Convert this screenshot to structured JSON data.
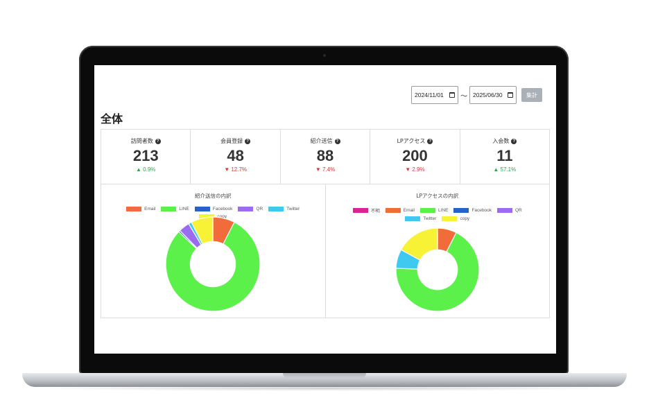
{
  "filters": {
    "start_date": "2024/11/01",
    "end_date": "2025/06/30",
    "separator": "〜",
    "aggregate_button": "集計"
  },
  "page_title": "全体",
  "stats": [
    {
      "label": "訪問者数",
      "value": "213",
      "change": "▲ 0.9%",
      "direction": "up"
    },
    {
      "label": "会員登録",
      "value": "48",
      "change": "▼ 12.7%",
      "direction": "down"
    },
    {
      "label": "紹介送信",
      "value": "88",
      "change": "▼ 7.4%",
      "direction": "down"
    },
    {
      "label": "LPアクセス",
      "value": "200",
      "change": "▼ 2.9%",
      "direction": "down"
    },
    {
      "label": "入会数",
      "value": "11",
      "change": "▲ 57.1%",
      "direction": "up"
    }
  ],
  "chart_data": [
    {
      "type": "pie",
      "title": "紹介送信の内訳",
      "labels": [
        "Email",
        "LINE",
        "Facebook",
        "QR",
        "Twitter",
        "copy"
      ],
      "colors": [
        "#f26b3a",
        "#5cf04a",
        "#2563c9",
        "#9b6cf0",
        "#3fc8f0",
        "#f7f235"
      ],
      "values": [
        7,
        74,
        0.5,
        3.5,
        1,
        7
      ],
      "donut": true
    },
    {
      "type": "pie",
      "title": "LPアクセスの内訳",
      "labels": [
        "不明",
        "Email",
        "LINE",
        "Facebook",
        "QR",
        "Twitter",
        "copy"
      ],
      "colors": [
        "#e0209b",
        "#f26b3a",
        "#5cf04a",
        "#2563c9",
        "#9b6cf0",
        "#3fc8f0",
        "#f7f235"
      ],
      "values": [
        0,
        7,
        64,
        0,
        0,
        7,
        16
      ],
      "donut": true
    }
  ]
}
